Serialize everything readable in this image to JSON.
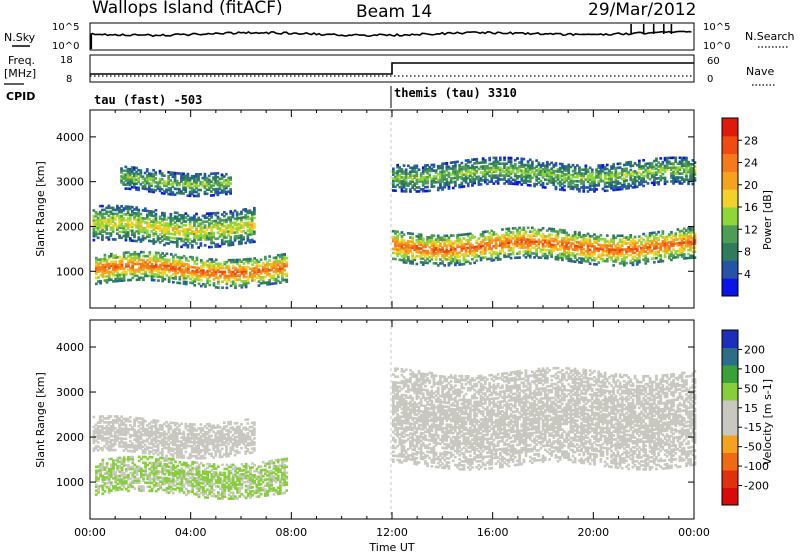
{
  "header": {
    "station": "Wallops Island (fitACF)",
    "beam": "Beam 14",
    "date": "29/Mar/2012"
  },
  "noise_panel": {
    "left_label": "N.Sky",
    "left_ticks": [
      "10^5",
      "10^0"
    ],
    "right_label": "N.Search",
    "right_ticks": [
      "10^5",
      "10^0"
    ]
  },
  "freq_panel": {
    "left_label_line1": "Freq.",
    "left_label_line2": "[MHz]",
    "left_ticks": [
      "18",
      "8"
    ],
    "right_label": "Nave",
    "right_ticks": [
      "60",
      "0"
    ],
    "cpid_label": "CPID"
  },
  "cpid_modes": [
    {
      "label": "tau (fast) -503",
      "start_ut": 0
    },
    {
      "label": "themis (tau) 3310",
      "start_ut": 12
    }
  ],
  "colors": {
    "power_scale": [
      "#0a14e6",
      "#2553a8",
      "#2f7b5e",
      "#4e9d57",
      "#8fd63a",
      "#f2d12a",
      "#f5a21f",
      "#f47a1c",
      "#ef4b12",
      "#e01a0a"
    ],
    "velocity_scale": [
      "#1b2fb8",
      "#2e6d8a",
      "#39a03a",
      "#86cf3a",
      "#c8c8c0",
      "#c8c8c0",
      "#f5a21f",
      "#ef6a12",
      "#e0310c",
      "#d80a0a"
    ]
  },
  "chart_data": [
    {
      "type": "heatmap",
      "title": "",
      "xlabel": "",
      "ylabel": "Slant Range [km]",
      "xlim": [
        0,
        24
      ],
      "ylim": [
        180,
        4600
      ],
      "yticks": [
        1000,
        2000,
        3000,
        4000
      ],
      "colorbar": {
        "label": "Power [dB]",
        "ticks": [
          "4",
          "8",
          "12",
          "16",
          "20",
          "24",
          "28"
        ],
        "range": [
          0,
          32
        ]
      },
      "features": [
        {
          "name": "near-range echo",
          "x_ut": [
            0.2,
            7.8
          ],
          "range_km": [
            750,
            1400
          ],
          "peak_db": 26
        },
        {
          "name": "mid-range echo",
          "x_ut": [
            0.1,
            6.5
          ],
          "range_km": [
            1650,
            2400
          ],
          "peak_db": 18
        },
        {
          "name": "far-range echo",
          "x_ut": [
            1.2,
            5.6
          ],
          "range_km": [
            2800,
            3300
          ],
          "peak_db": 14
        },
        {
          "name": "post-12UT near band",
          "x_ut": [
            12.0,
            24.0
          ],
          "range_km": [
            1250,
            1950
          ],
          "peak_db": 26
        },
        {
          "name": "post-12UT far band",
          "x_ut": [
            12.0,
            24.0
          ],
          "range_km": [
            2900,
            3500
          ],
          "peak_db": 14
        }
      ]
    },
    {
      "type": "heatmap",
      "title": "",
      "xlabel": "Time UT",
      "ylabel": "Slant Range [km]",
      "xlim": [
        0,
        24
      ],
      "ylim": [
        180,
        4600
      ],
      "xticks": [
        "00:00",
        "04:00",
        "08:00",
        "12:00",
        "16:00",
        "20:00",
        "00:00"
      ],
      "yticks": [
        1000,
        2000,
        3000,
        4000
      ],
      "colorbar": {
        "label": "Velocity [m s-1]",
        "ticks": [
          "200",
          "100",
          "50",
          "15",
          "-15",
          "-50",
          "-100",
          "-200"
        ],
        "range": [
          -250,
          250
        ]
      },
      "features": [
        {
          "name": "near-range echo",
          "x_ut": [
            0.2,
            7.8
          ],
          "range_km": [
            750,
            1500
          ],
          "velocity_ms": 60
        },
        {
          "name": "mid-range echo",
          "x_ut": [
            0.1,
            6.5
          ],
          "range_km": [
            1650,
            2400
          ],
          "velocity_ms": 0
        },
        {
          "name": "post-12UT bands",
          "x_ut": [
            12.0,
            24.0
          ],
          "range_km": [
            1400,
            3500
          ],
          "velocity_ms": 0
        }
      ]
    }
  ]
}
